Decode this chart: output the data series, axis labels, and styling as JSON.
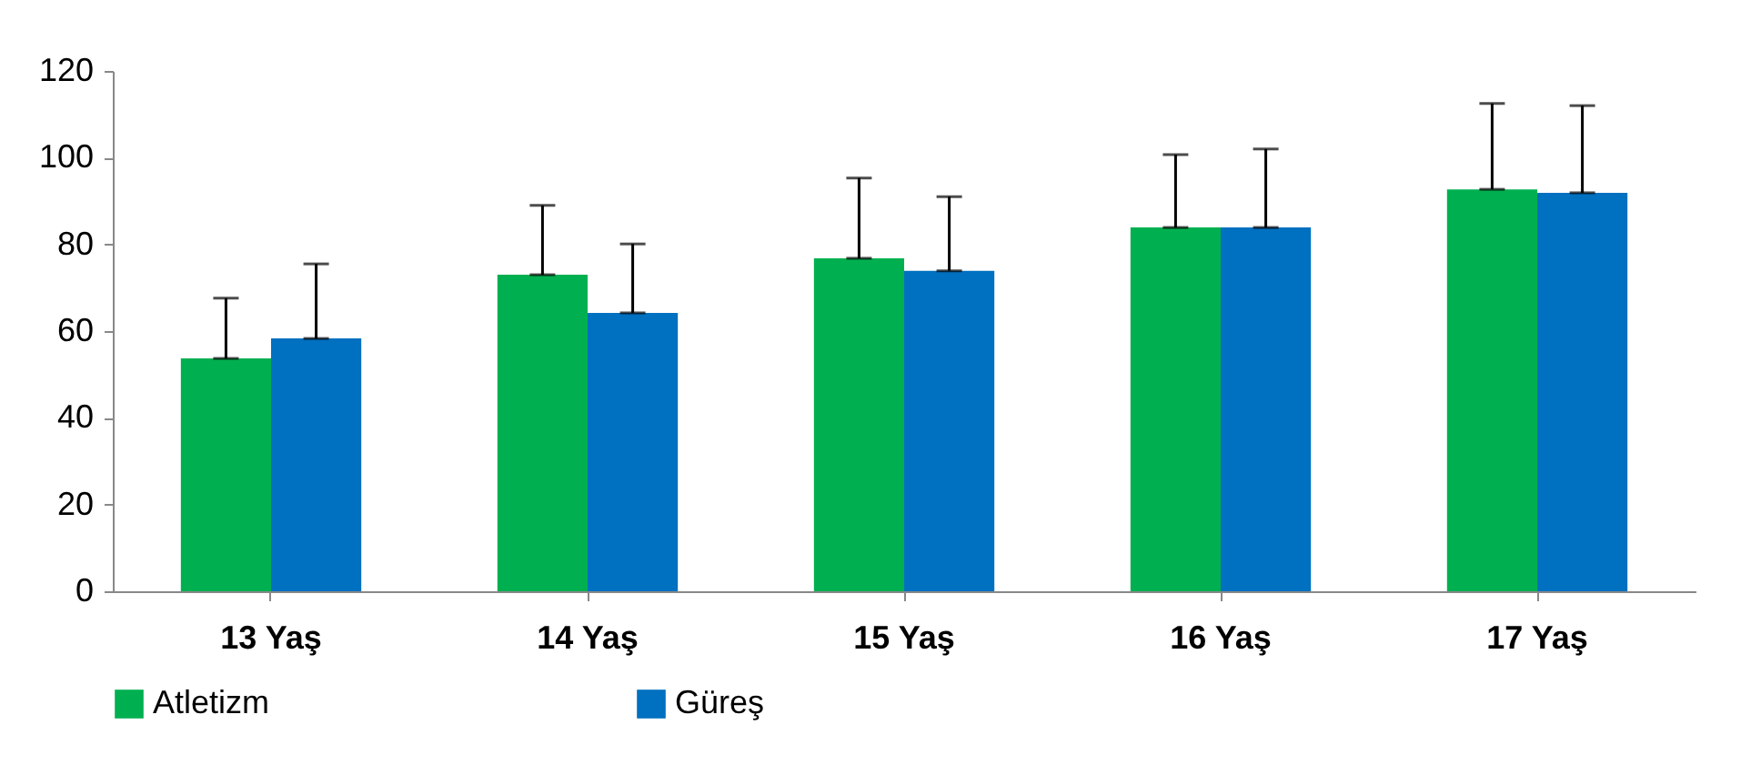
{
  "chart_data": {
    "type": "bar",
    "categories": [
      "13 Yaş",
      "14  Yaş",
      "15 Yaş",
      "16 Yaş",
      "17 Yaş"
    ],
    "series": [
      {
        "name": "Atletizm",
        "color": "#00b050",
        "values": [
          53.7,
          73,
          76.8,
          83.9,
          92.7
        ],
        "errors": [
          [
            53.7,
            67.6
          ],
          [
            73,
            89
          ],
          [
            76.8,
            95.3
          ],
          [
            83.9,
            100.7
          ],
          [
            92.7,
            112.5
          ]
        ]
      },
      {
        "name": "Güreş",
        "color": "#0070c0",
        "values": [
          58.3,
          64.2,
          73.9,
          83.9,
          91.9
        ],
        "errors": [
          [
            58.3,
            75.5
          ],
          [
            64.2,
            80.1
          ],
          [
            73.9,
            91
          ],
          [
            83.9,
            102
          ],
          [
            91.9,
            112
          ]
        ]
      }
    ],
    "ylim": [
      0,
      120
    ],
    "yticks": [
      0,
      20,
      40,
      60,
      80,
      100,
      120
    ],
    "grid": false,
    "legend": "bottom"
  }
}
